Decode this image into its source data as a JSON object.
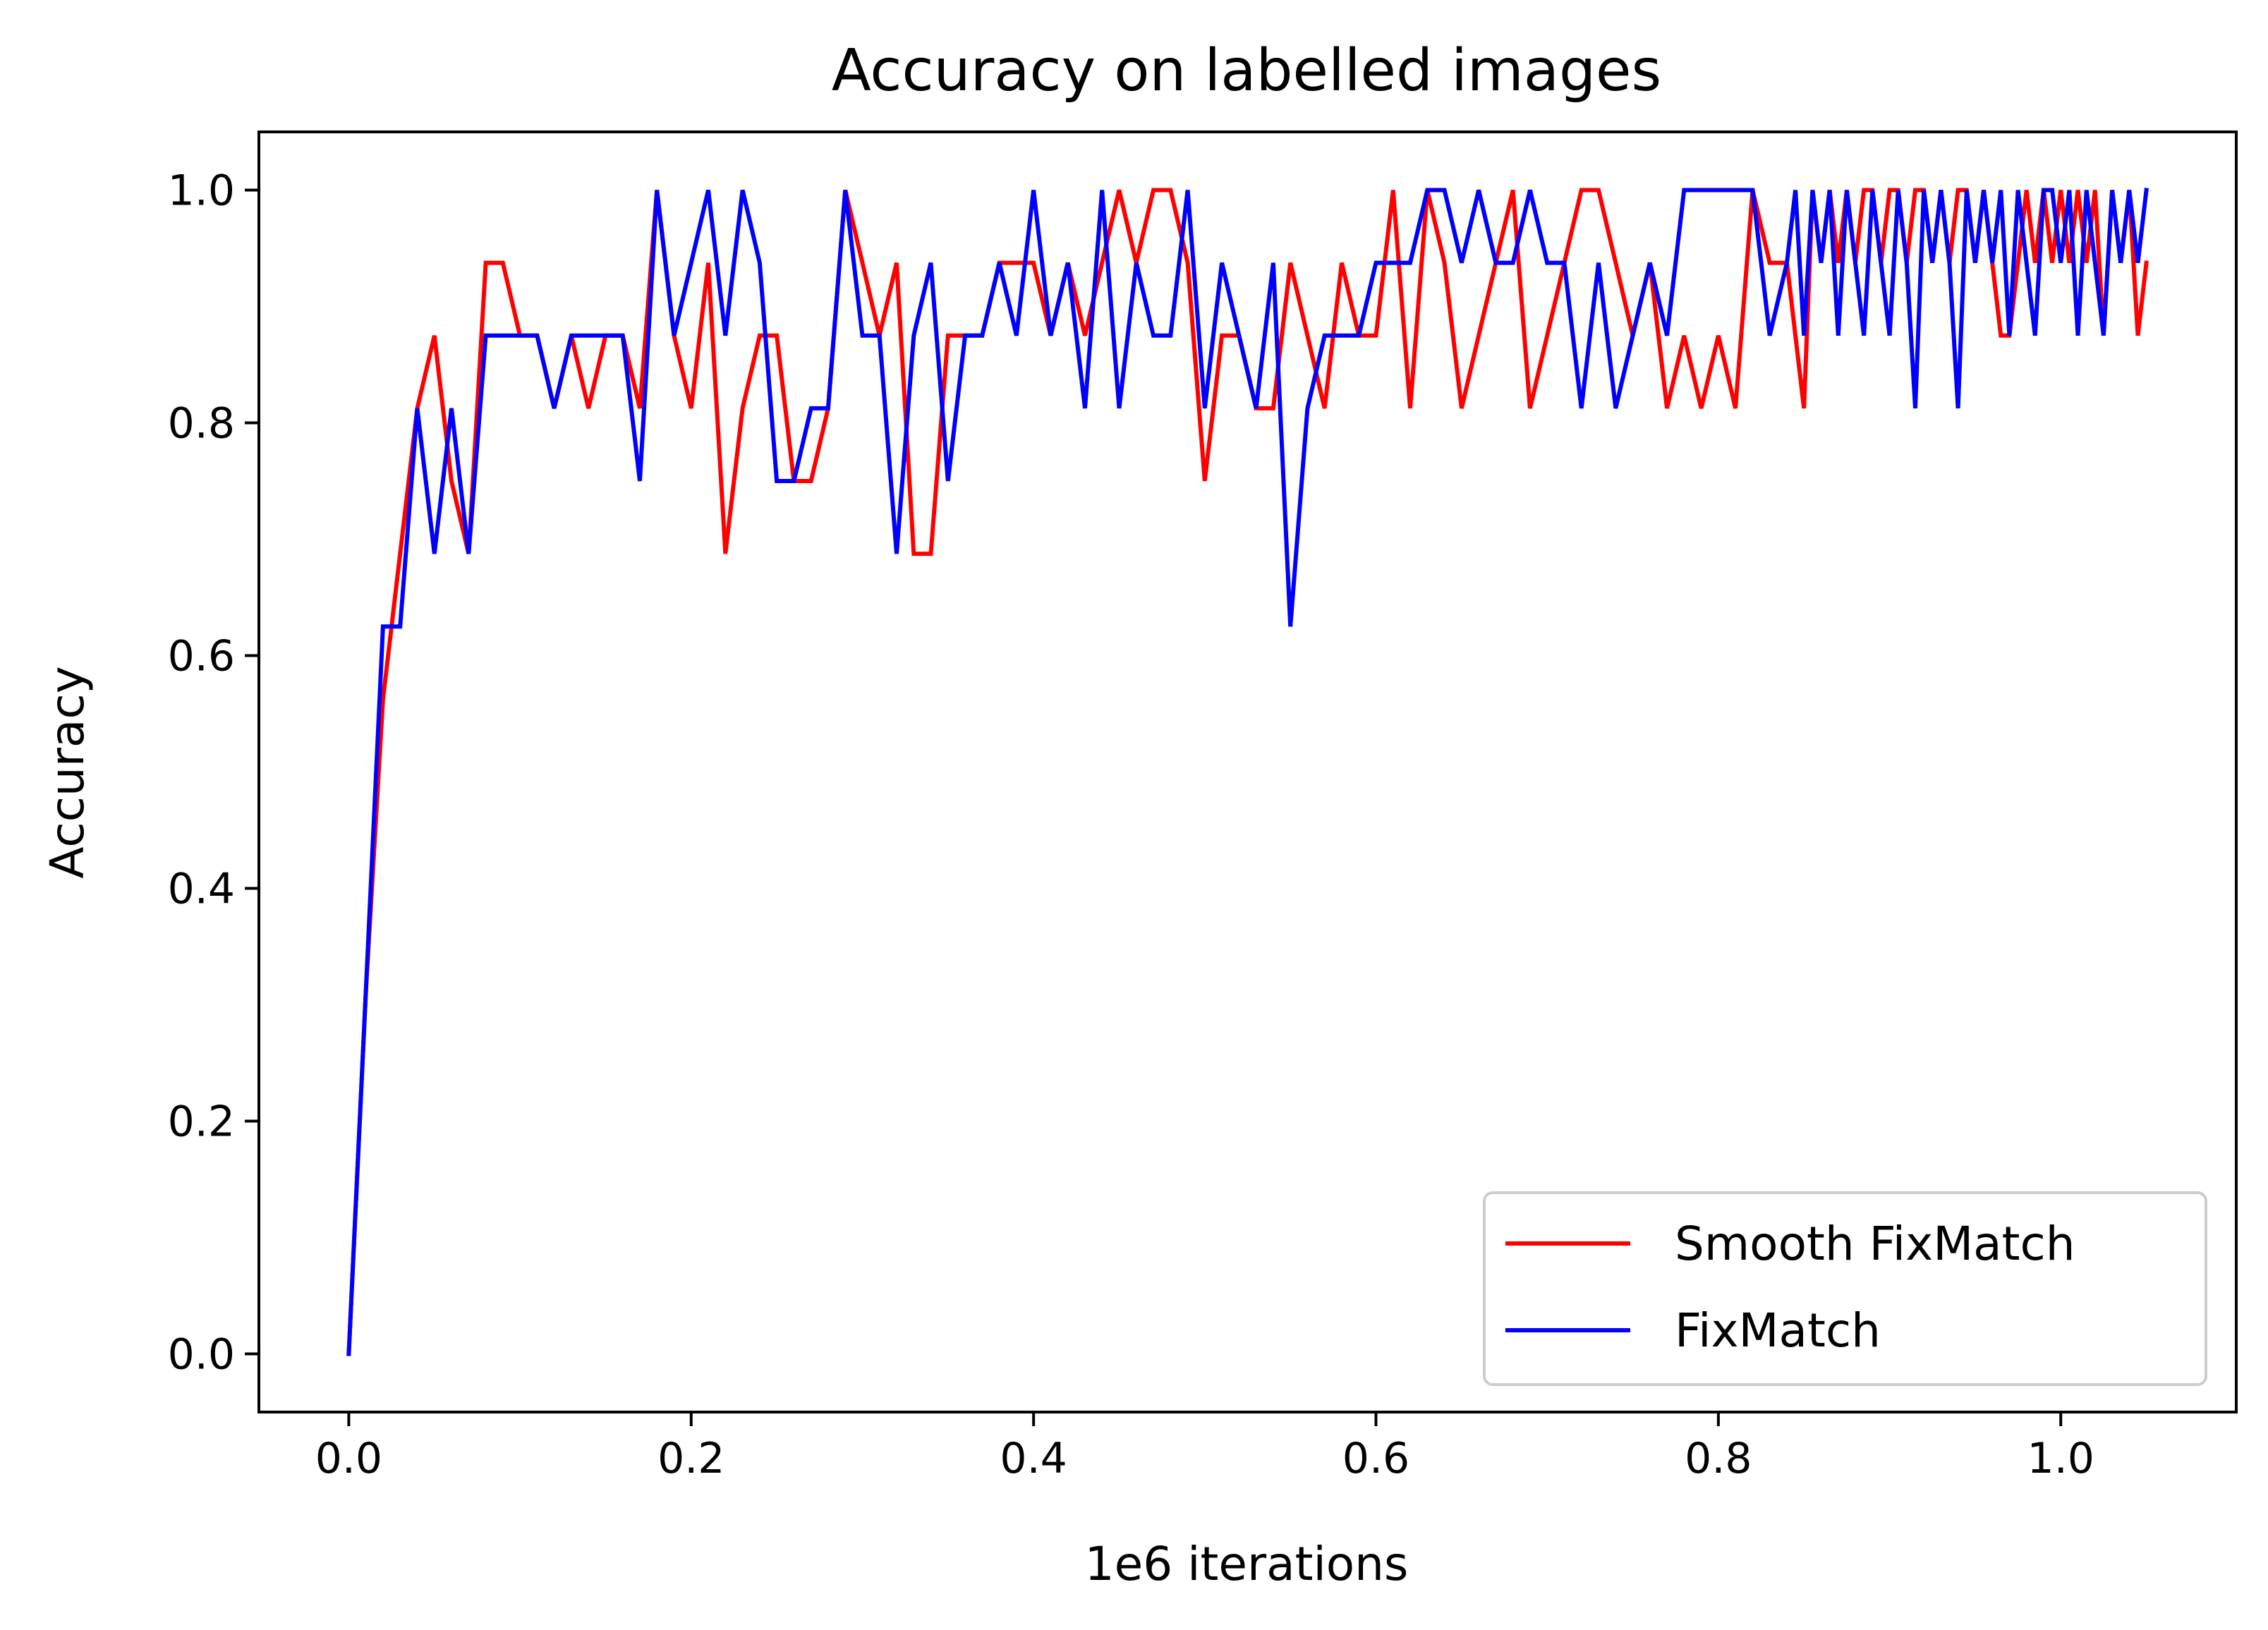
{
  "chart_data": {
    "type": "line",
    "title": "Accuracy on labelled images",
    "xlabel": "1e6 iterations",
    "ylabel": "Accuracy",
    "xlim": [
      -0.0525,
      1.1025
    ],
    "ylim": [
      -0.05,
      1.05
    ],
    "xticks": [
      0.0,
      0.2,
      0.4,
      0.6,
      0.8,
      1.0
    ],
    "xtick_labels": [
      "0.0",
      "0.2",
      "0.4",
      "0.6",
      "0.8",
      "1.0"
    ],
    "yticks": [
      0.0,
      0.2,
      0.4,
      0.6,
      0.8,
      1.0
    ],
    "ytick_labels": [
      "0.0",
      "0.2",
      "0.4",
      "0.6",
      "0.8",
      "1.0"
    ],
    "grid": false,
    "legend_position": "lower-right",
    "series": [
      {
        "name": "Smooth FixMatch",
        "color": "#ff0000",
        "x": [
          0,
          0.01,
          0.02,
          0.03,
          0.04,
          0.05,
          0.06,
          0.07,
          0.08,
          0.09,
          0.1,
          0.11,
          0.12,
          0.13,
          0.14,
          0.15,
          0.16,
          0.17,
          0.18,
          0.19,
          0.2,
          0.21,
          0.22,
          0.23,
          0.24,
          0.25,
          0.26,
          0.27,
          0.28,
          0.29,
          0.3,
          0.31,
          0.32,
          0.33,
          0.34,
          0.35,
          0.36,
          0.37,
          0.38,
          0.39,
          0.4,
          0.41,
          0.42,
          0.43,
          0.44,
          0.45,
          0.46,
          0.47,
          0.48,
          0.49,
          0.5,
          0.51,
          0.52,
          0.53,
          0.54,
          0.55,
          0.56,
          0.57,
          0.58,
          0.59,
          0.6,
          0.61,
          0.62,
          0.63,
          0.64,
          0.65,
          0.66,
          0.67,
          0.68,
          0.69,
          0.7,
          0.71,
          0.72,
          0.73,
          0.74,
          0.75,
          0.76,
          0.77,
          0.78,
          0.79,
          0.8,
          0.81,
          0.82,
          0.83,
          0.84,
          0.85,
          0.855,
          0.86,
          0.865,
          0.87,
          0.875,
          0.88,
          0.885,
          0.89,
          0.895,
          0.9,
          0.905,
          0.91,
          0.915,
          0.92,
          0.925,
          0.93,
          0.935,
          0.94,
          0.945,
          0.95,
          0.955,
          0.96,
          0.965,
          0.97,
          0.975,
          0.98,
          0.985,
          0.99,
          0.995,
          1.0,
          1.005,
          1.01,
          1.015,
          1.02,
          1.025,
          1.03,
          1.035,
          1.04,
          1.045,
          1.05
        ],
        "values": [
          0.0,
          0.312,
          0.5625,
          0.6875,
          0.8125,
          0.875,
          0.75,
          0.6875,
          0.9375,
          0.9375,
          0.875,
          0.875,
          0.8125,
          0.875,
          0.8125,
          0.875,
          0.875,
          0.8125,
          1.0,
          0.875,
          0.8125,
          0.9375,
          0.6875,
          0.8125,
          0.875,
          0.875,
          0.75,
          0.75,
          0.8125,
          1.0,
          0.9375,
          0.875,
          0.9375,
          0.6875,
          0.6875,
          0.875,
          0.875,
          0.875,
          0.9375,
          0.9375,
          0.9375,
          0.875,
          0.9375,
          0.875,
          0.9375,
          1.0,
          0.9375,
          1.0,
          1.0,
          0.9375,
          0.75,
          0.875,
          0.875,
          0.8125,
          0.8125,
          0.9375,
          0.875,
          0.8125,
          0.9375,
          0.875,
          0.875,
          1.0,
          0.8125,
          1.0,
          0.9375,
          0.8125,
          0.875,
          0.9375,
          1.0,
          0.8125,
          0.875,
          0.9375,
          1.0,
          1.0,
          0.9375,
          0.875,
          0.9375,
          0.8125,
          0.875,
          0.8125,
          0.875,
          0.8125,
          1.0,
          0.9375,
          0.9375,
          0.8125,
          1.0,
          0.9375,
          1.0,
          0.9375,
          1.0,
          0.9375,
          1.0,
          1.0,
          0.9375,
          1.0,
          1.0,
          0.9375,
          1.0,
          1.0,
          0.9375,
          1.0,
          0.9375,
          1.0,
          1.0,
          0.9375,
          1.0,
          0.9375,
          0.875,
          0.875,
          0.9375,
          1.0,
          0.9375,
          1.0,
          0.9375,
          1.0,
          0.9375,
          1.0,
          0.9375,
          1.0,
          0.875,
          1.0,
          0.9375,
          1.0,
          0.875,
          0.9375
        ]
      },
      {
        "name": "FixMatch",
        "color": "#0000ff",
        "x": [
          0,
          0.01,
          0.02,
          0.03,
          0.04,
          0.05,
          0.06,
          0.07,
          0.08,
          0.09,
          0.1,
          0.11,
          0.12,
          0.13,
          0.14,
          0.15,
          0.16,
          0.17,
          0.18,
          0.19,
          0.2,
          0.21,
          0.22,
          0.23,
          0.24,
          0.25,
          0.26,
          0.27,
          0.28,
          0.29,
          0.3,
          0.31,
          0.32,
          0.33,
          0.34,
          0.35,
          0.36,
          0.37,
          0.38,
          0.39,
          0.4,
          0.41,
          0.42,
          0.43,
          0.44,
          0.45,
          0.46,
          0.47,
          0.48,
          0.49,
          0.5,
          0.51,
          0.52,
          0.53,
          0.54,
          0.55,
          0.56,
          0.57,
          0.58,
          0.59,
          0.6,
          0.61,
          0.62,
          0.63,
          0.64,
          0.65,
          0.66,
          0.67,
          0.68,
          0.69,
          0.7,
          0.71,
          0.72,
          0.73,
          0.74,
          0.75,
          0.76,
          0.77,
          0.78,
          0.79,
          0.8,
          0.81,
          0.82,
          0.83,
          0.84,
          0.845,
          0.85,
          0.855,
          0.86,
          0.865,
          0.87,
          0.875,
          0.88,
          0.885,
          0.89,
          0.895,
          0.9,
          0.905,
          0.91,
          0.915,
          0.92,
          0.925,
          0.93,
          0.935,
          0.94,
          0.945,
          0.95,
          0.955,
          0.96,
          0.965,
          0.97,
          0.975,
          0.98,
          0.985,
          0.99,
          0.995,
          1.0,
          1.005,
          1.01,
          1.015,
          1.02,
          1.025,
          1.03,
          1.035,
          1.04,
          1.045,
          1.05
        ],
        "values": [
          0.0,
          0.3125,
          0.625,
          0.625,
          0.8125,
          0.6875,
          0.8125,
          0.6875,
          0.875,
          0.875,
          0.875,
          0.875,
          0.8125,
          0.875,
          0.875,
          0.875,
          0.875,
          0.75,
          1.0,
          0.875,
          0.9375,
          1.0,
          0.875,
          1.0,
          0.9375,
          0.75,
          0.75,
          0.8125,
          0.8125,
          1.0,
          0.875,
          0.875,
          0.6875,
          0.875,
          0.9375,
          0.75,
          0.875,
          0.875,
          0.9375,
          0.875,
          1.0,
          0.875,
          0.9375,
          0.8125,
          1.0,
          0.8125,
          0.9375,
          0.875,
          0.875,
          1.0,
          0.8125,
          0.9375,
          0.875,
          0.8125,
          0.9375,
          0.625,
          0.8125,
          0.875,
          0.875,
          0.875,
          0.9375,
          0.9375,
          0.9375,
          1.0,
          1.0,
          0.9375,
          1.0,
          0.9375,
          0.9375,
          1.0,
          0.9375,
          0.9375,
          0.8125,
          0.9375,
          0.8125,
          0.875,
          0.9375,
          0.875,
          1.0,
          1.0,
          1.0,
          1.0,
          1.0,
          0.875,
          0.9375,
          1.0,
          0.875,
          1.0,
          0.9375,
          1.0,
          0.875,
          1.0,
          0.9375,
          0.875,
          1.0,
          0.9375,
          0.875,
          1.0,
          0.9375,
          0.8125,
          1.0,
          0.9375,
          1.0,
          0.9375,
          0.8125,
          1.0,
          0.9375,
          1.0,
          0.9375,
          1.0,
          0.875,
          1.0,
          0.9375,
          0.875,
          1.0,
          1.0,
          0.9375,
          1.0,
          0.875,
          1.0,
          0.9375,
          0.875,
          1.0,
          0.9375,
          1.0,
          0.9375,
          1.0
        ]
      }
    ]
  }
}
